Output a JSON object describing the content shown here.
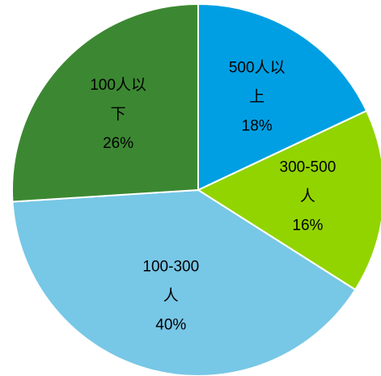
{
  "chart_data": {
    "type": "pie",
    "slices": [
      {
        "label": [
          "500人以",
          "上"
        ],
        "value": 18,
        "pct_text": "18%",
        "color": "#009fe3"
      },
      {
        "label": [
          "300-500",
          "人"
        ],
        "value": 16,
        "pct_text": "16%",
        "color": "#92d400"
      },
      {
        "label": [
          "100-300",
          "人"
        ],
        "value": 40,
        "pct_text": "40%",
        "color": "#77c7e6"
      },
      {
        "label": [
          "100人以",
          "下"
        ],
        "value": 26,
        "pct_text": "26%",
        "color": "#3c8832"
      }
    ],
    "start_angle": "12 o'clock",
    "direction": "clockwise"
  }
}
